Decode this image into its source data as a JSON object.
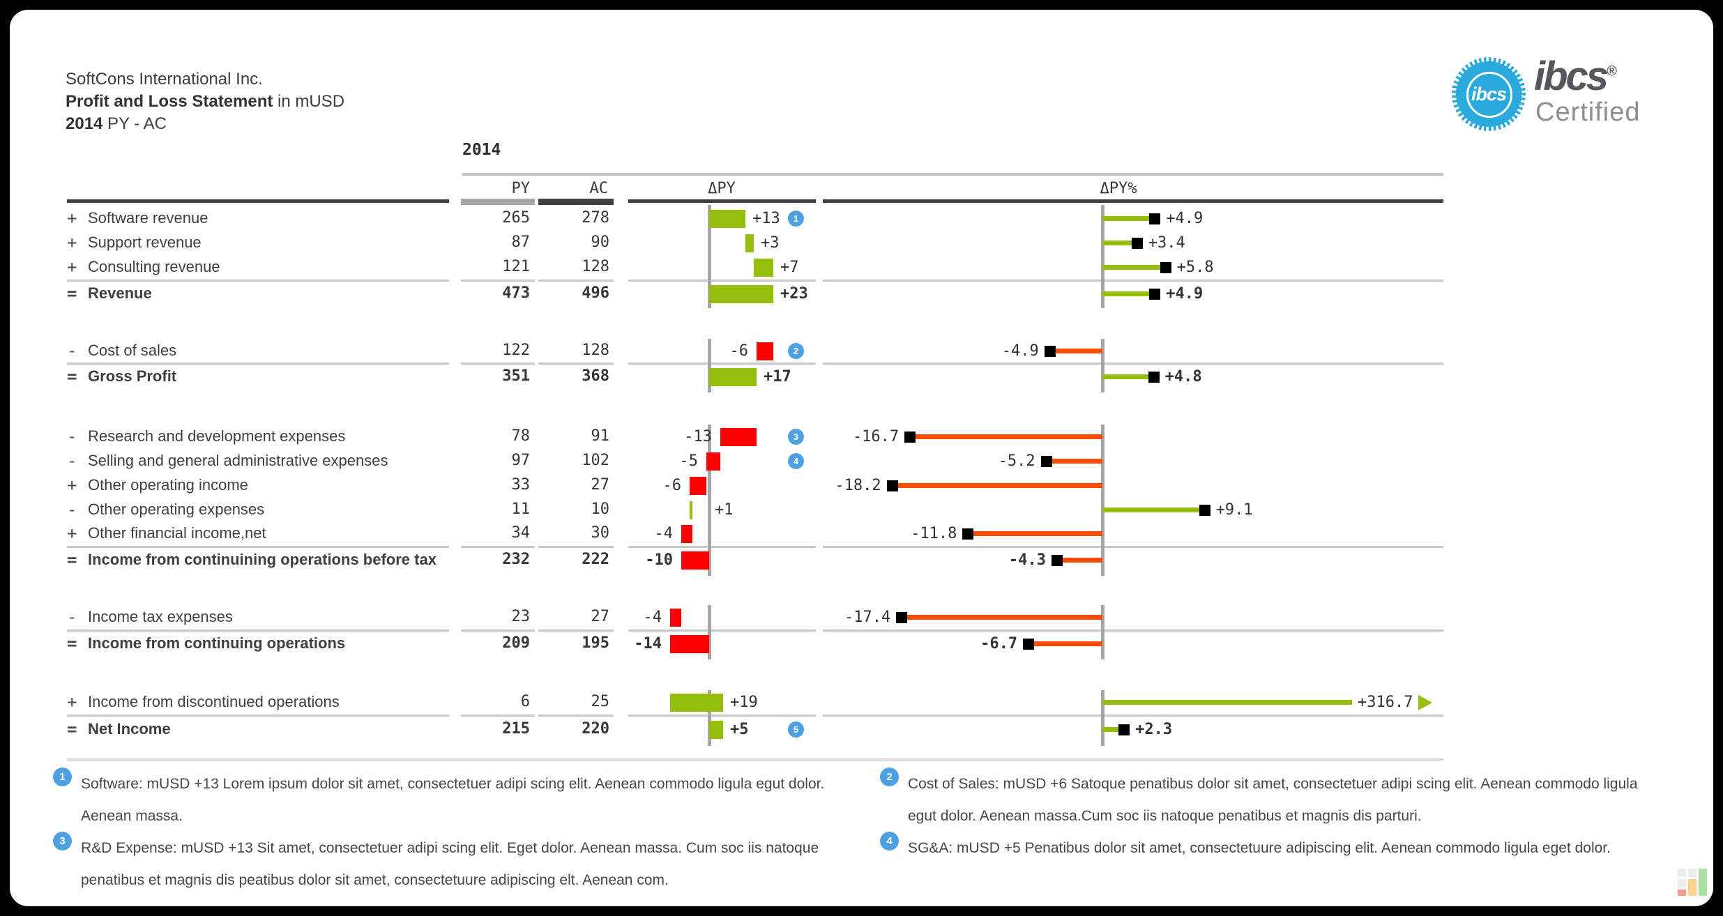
{
  "title": {
    "company": "SoftCons International Inc.",
    "report_bold": "Profit and Loss Statement",
    "report_suffix": " in mUSD",
    "period_bold": "2014",
    "period_suffix": " PY - AC"
  },
  "badge": {
    "seal_word": "ibcs",
    "wordmark": "ibcs",
    "registered": "®",
    "certified": "Certified"
  },
  "header": {
    "year": "2014",
    "col_py": "PY",
    "col_ac": "AC",
    "col_dpy": "ΔPY",
    "col_dpy_pct": "ΔPY%"
  },
  "colors": {
    "green": "#96be0d",
    "red": "#fe0000",
    "pin_neg": "#fc4b06",
    "pin_pos": "#96be0d",
    "axis": "#a6a6a6",
    "grid": "#c7c7c7",
    "dark": "#3f3f3f",
    "py_bar": "#a6a6a6",
    "ac_bar": "#404040",
    "note_blue": "#4da1e0",
    "seal": "#2aa9dc"
  },
  "rows": [
    {
      "sign": "+",
      "label": "Software revenue",
      "py": "265",
      "ac": "278",
      "total": false,
      "note": "1",
      "delta": {
        "label": "+13",
        "from": 0,
        "to": 13,
        "positive": true
      },
      "pct": {
        "label": "+4.9",
        "value": 4.9,
        "positive": true
      }
    },
    {
      "sign": "+",
      "label": "Support revenue",
      "py": "87",
      "ac": "90",
      "total": false,
      "delta": {
        "label": "+3",
        "from": 13,
        "to": 16,
        "positive": true
      },
      "pct": {
        "label": "+3.4",
        "value": 3.4,
        "positive": true
      }
    },
    {
      "sign": "+",
      "label": "Consulting revenue",
      "py": "121",
      "ac": "128",
      "total": false,
      "delta": {
        "label": "+7",
        "from": 16,
        "to": 23,
        "positive": true
      },
      "pct": {
        "label": "+5.8",
        "value": 5.8,
        "positive": true
      }
    },
    {
      "sign": "=",
      "label": "Revenue",
      "py": "473",
      "ac": "496",
      "total": true,
      "delta": {
        "label": "+23",
        "from": 0,
        "to": 23,
        "positive": true
      },
      "pct": {
        "label": "+4.9",
        "value": 4.9,
        "positive": true
      }
    },
    {
      "sign": "-",
      "label": "Cost of sales",
      "py": "122",
      "ac": "128",
      "total": false,
      "note": "2",
      "delta": {
        "label": "-6",
        "from": 17,
        "to": 23,
        "positive": false
      },
      "pct": {
        "label": "-4.9",
        "value": -4.9,
        "positive": false
      }
    },
    {
      "sign": "=",
      "label": "Gross Profit",
      "py": "351",
      "ac": "368",
      "total": true,
      "delta": {
        "label": "+17",
        "from": 0,
        "to": 17,
        "positive": true
      },
      "pct": {
        "label": "+4.8",
        "value": 4.8,
        "positive": true
      }
    },
    {
      "sign": "-",
      "label": "Research and development expenses",
      "py": "78",
      "ac": "91",
      "total": false,
      "note": "3",
      "delta": {
        "label": "-13",
        "from": 4,
        "to": 17,
        "positive": false
      },
      "pct": {
        "label": "-16.7",
        "value": -16.7,
        "positive": false
      }
    },
    {
      "sign": "-",
      "label": "Selling and general administrative expenses",
      "py": "97",
      "ac": "102",
      "total": false,
      "note": "4",
      "delta": {
        "label": "-5",
        "from": -1,
        "to": 4,
        "positive": false
      },
      "pct": {
        "label": "-5.2",
        "value": -5.2,
        "positive": false
      }
    },
    {
      "sign": "+",
      "label": "Other operating income",
      "py": "33",
      "ac": "27",
      "total": false,
      "delta": {
        "label": "-6",
        "from": -7,
        "to": -1,
        "positive": false
      },
      "pct": {
        "label": "-18.2",
        "value": -18.2,
        "positive": false
      }
    },
    {
      "sign": "-",
      "label": "Other operating expenses",
      "py": "11",
      "ac": "10",
      "total": false,
      "delta": {
        "label": "+1",
        "from": -7,
        "to": -6,
        "positive": true
      },
      "pct": {
        "label": "+9.1",
        "value": 9.1,
        "positive": true
      }
    },
    {
      "sign": "+",
      "label": "Other financial income,net",
      "py": "34",
      "ac": "30",
      "total": false,
      "delta": {
        "label": "-4",
        "from": -10,
        "to": -6,
        "positive": false
      },
      "pct": {
        "label": "-11.8",
        "value": -11.8,
        "positive": false
      }
    },
    {
      "sign": "=",
      "label": "Income from continuining operations before tax",
      "py": "232",
      "ac": "222",
      "total": true,
      "delta": {
        "label": "-10",
        "from": -10,
        "to": 0,
        "positive": false
      },
      "pct": {
        "label": "-4.3",
        "value": -4.3,
        "positive": false
      }
    },
    {
      "sign": "-",
      "label": "Income tax expenses",
      "py": "23",
      "ac": "27",
      "total": false,
      "delta": {
        "label": "-4",
        "from": -14,
        "to": -10,
        "positive": false
      },
      "pct": {
        "label": "-17.4",
        "value": -17.4,
        "positive": false
      }
    },
    {
      "sign": "=",
      "label": "Income from continuing operations",
      "py": "209",
      "ac": "195",
      "total": true,
      "delta": {
        "label": "-14",
        "from": -14,
        "to": 0,
        "positive": false
      },
      "pct": {
        "label": "-6.7",
        "value": -6.7,
        "positive": false
      }
    },
    {
      "sign": "+",
      "label": "Income from discontinued operations",
      "py": "6",
      "ac": "25",
      "total": false,
      "delta": {
        "label": "+19",
        "from": -14,
        "to": 5,
        "positive": true
      },
      "pct": {
        "label": "+316.7",
        "value": 316.7,
        "positive": true,
        "clipped": true
      }
    },
    {
      "sign": "=",
      "label": "Net Income",
      "py": "215",
      "ac": "220",
      "total": true,
      "note": "5",
      "delta": {
        "label": "+5",
        "from": 0,
        "to": 5,
        "positive": true
      },
      "pct": {
        "label": "+2.3",
        "value": 2.3,
        "positive": true
      }
    }
  ],
  "footnotes": [
    {
      "num": "1",
      "col": "left",
      "text": "Software: mUSD +13 Lorem ipsum dolor sit amet, consectetuer adipi scing elit. Aenean commodo ligula egut dolor. Aenean massa."
    },
    {
      "num": "2",
      "col": "right",
      "text": "Cost of Sales: mUSD +6 Satoque penatibus dolor sit amet, consectetuer adipi scing elit. Aenean commodo ligula egut dolor. Aenean massa.Cum soc iis natoque penatibus et magnis dis parturi."
    },
    {
      "num": "3",
      "col": "left",
      "text": "R&D Expense: mUSD +13 Sit amet, consectetuer adipi scing elit. Eget dolor. Aenean massa. Cum soc iis natoque penatibus et magnis dis peatibus dolor sit amet, consectetuure adipiscing elt. Aenean com."
    },
    {
      "num": "4",
      "col": "right",
      "text": "SG&A: mUSD +5 Penatibus dolor sit amet, consectetuure adipiscing elit. Aenean commodo ligula eget dolor."
    }
  ],
  "chart_data": {
    "type": "table",
    "title": "Profit and Loss Statement in mUSD, 2014 PY - AC",
    "categories": [
      "Software revenue",
      "Support revenue",
      "Consulting revenue",
      "Revenue",
      "Cost of sales",
      "Gross Profit",
      "Research and development expenses",
      "Selling and general administrative expenses",
      "Other operating income",
      "Other operating expenses",
      "Other financial income,net",
      "Income from continuining operations before tax",
      "Income tax expenses",
      "Income from continuing operations",
      "Income from discontinued operations",
      "Net Income"
    ],
    "series": [
      {
        "name": "PY",
        "values": [
          265,
          87,
          121,
          473,
          122,
          351,
          78,
          97,
          33,
          11,
          34,
          232,
          23,
          209,
          6,
          215
        ]
      },
      {
        "name": "AC",
        "values": [
          278,
          90,
          128,
          496,
          128,
          368,
          91,
          102,
          27,
          10,
          30,
          222,
          27,
          195,
          25,
          220
        ]
      },
      {
        "name": "ΔPY (waterfall)",
        "values": [
          13,
          3,
          7,
          23,
          -6,
          17,
          -13,
          -5,
          -6,
          1,
          -4,
          -10,
          -4,
          -14,
          19,
          5
        ]
      },
      {
        "name": "ΔPY% (pin)",
        "values": [
          4.9,
          3.4,
          5.8,
          4.9,
          -4.9,
          4.8,
          -16.7,
          -5.2,
          -18.2,
          9.1,
          -11.8,
          -4.3,
          -17.4,
          -6.7,
          316.7,
          2.3
        ]
      }
    ],
    "legend_position": "column headers",
    "grid": false,
    "notes": "green = favourable, red = unfavourable; blue numbered dots reference footnotes 1-5; +316.7 pin clipped with arrow"
  }
}
